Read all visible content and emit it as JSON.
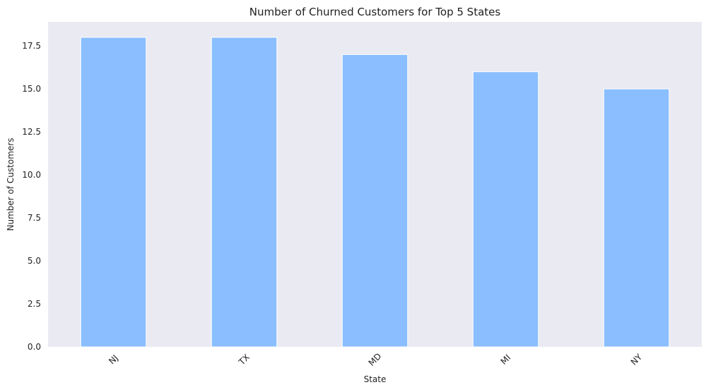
{
  "chart_data": {
    "type": "bar",
    "title": "Number of Churned Customers for Top 5 States",
    "xlabel": "State",
    "ylabel": "Number of Customers",
    "categories": [
      "NJ",
      "TX",
      "MD",
      "MI",
      "NY"
    ],
    "values": [
      18,
      18,
      17,
      16,
      15
    ],
    "ylim": [
      0,
      18.9
    ],
    "yticks": [
      0.0,
      2.5,
      5.0,
      7.5,
      10.0,
      12.5,
      15.0,
      17.5
    ],
    "ytick_labels": [
      "0.0",
      "2.5",
      "5.0",
      "7.5",
      "10.0",
      "12.5",
      "15.0",
      "17.5"
    ],
    "grid": false,
    "x_tick_rotation_deg": 45,
    "colors": {
      "bar": "#8abefe",
      "bar_edge": "#ffffff",
      "plot_background": "#eaeaf2",
      "text": "#1f1f1f"
    }
  }
}
